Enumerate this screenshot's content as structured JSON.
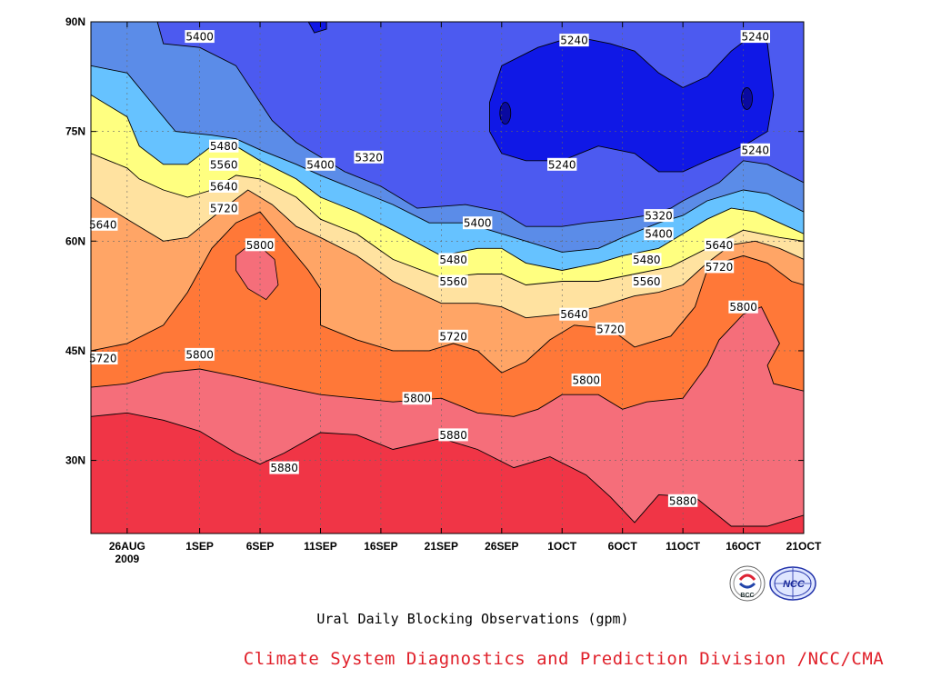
{
  "title": "Ural Daily Blocking Observations (gpm)",
  "credit": "Climate System Diagnostics and Prediction Division /NCC/CMA",
  "logos": {
    "left_label": "BCC",
    "right_label": "NCC"
  },
  "colors": {
    "c_5240": "#1018e6",
    "c_5320": "#4c5af0",
    "c_5400": "#5b8ce8",
    "c_5480": "#66c2ff",
    "c_5560": "#ffff80",
    "c_5640": "#ffe2a0",
    "c_5720": "#ffa566",
    "c_5800": "#ff7838",
    "c_5880": "#f56e7a",
    "c_high": "#f03546",
    "c_low": "#0a0aa0",
    "credit": "#e0202a"
  },
  "chart_data": {
    "type": "contour",
    "x_axis": {
      "ticks": [
        {
          "day": 0,
          "label": "26AUG",
          "sublabel": "2009"
        },
        {
          "day": 6,
          "label": "1SEP"
        },
        {
          "day": 11,
          "label": "6SEP"
        },
        {
          "day": 16,
          "label": "11SEP"
        },
        {
          "day": 21,
          "label": "16SEP"
        },
        {
          "day": 26,
          "label": "21SEP"
        },
        {
          "day": 31,
          "label": "26SEP"
        },
        {
          "day": 36,
          "label": "1OCT"
        },
        {
          "day": 41,
          "label": "6OCT"
        },
        {
          "day": 46,
          "label": "11OCT"
        },
        {
          "day": 51,
          "label": "16OCT"
        },
        {
          "day": 56,
          "label": "21OCT"
        }
      ],
      "range": [
        -3,
        56
      ]
    },
    "y_axis": {
      "ticks": [
        {
          "lat": 30,
          "label": "30N"
        },
        {
          "lat": 45,
          "label": "45N"
        },
        {
          "lat": 60,
          "label": "60N"
        },
        {
          "lat": 75,
          "label": "75N"
        },
        {
          "lat": 90,
          "label": "90N"
        }
      ],
      "range": [
        20,
        90
      ]
    },
    "contour_interval": 80,
    "levels": [
      5240,
      5320,
      5400,
      5480,
      5560,
      5640,
      5720,
      5800,
      5880
    ],
    "contours": [
      {
        "level": 5880,
        "points": [
          [
            -3,
            36
          ],
          [
            0,
            36.5
          ],
          [
            3,
            35.5
          ],
          [
            6,
            34
          ],
          [
            9,
            31
          ],
          [
            11,
            29.5
          ],
          [
            13,
            31
          ],
          [
            16,
            33.8
          ],
          [
            19,
            33.5
          ],
          [
            22,
            31.5
          ],
          [
            26,
            33
          ],
          [
            29,
            31.5
          ],
          [
            32,
            29
          ],
          [
            35,
            30.5
          ],
          [
            38,
            28
          ],
          [
            40,
            25
          ],
          [
            42,
            21.5
          ],
          [
            44,
            25.3
          ],
          [
            47,
            25
          ],
          [
            50,
            21
          ],
          [
            53,
            21
          ],
          [
            56,
            22.5
          ]
        ]
      },
      {
        "level": 5800,
        "points": [
          [
            -3,
            40
          ],
          [
            0,
            40.5
          ],
          [
            3,
            42
          ],
          [
            6,
            42.5
          ],
          [
            9,
            41.5
          ],
          [
            13,
            40
          ],
          [
            16,
            39
          ],
          [
            19,
            38.5
          ],
          [
            22,
            38
          ],
          [
            26,
            38.5
          ],
          [
            29,
            36.5
          ],
          [
            32,
            36
          ],
          [
            34,
            37
          ],
          [
            36,
            39
          ],
          [
            39,
            39
          ],
          [
            41,
            37
          ],
          [
            43,
            38
          ],
          [
            46,
            38.5
          ],
          [
            48,
            43
          ],
          [
            49,
            46.5
          ],
          [
            51,
            50
          ],
          [
            52.5,
            51
          ],
          [
            54,
            46
          ],
          [
            53,
            43
          ],
          [
            53.5,
            40.5
          ],
          [
            56,
            39.5
          ]
        ]
      },
      {
        "level": 5720,
        "points": [
          [
            -3,
            45
          ],
          [
            0,
            46
          ],
          [
            3,
            48.5
          ],
          [
            5,
            53
          ],
          [
            7,
            59
          ],
          [
            9,
            62.5
          ],
          [
            11,
            64
          ],
          [
            13,
            60
          ],
          [
            15,
            56
          ],
          [
            16,
            53.5
          ],
          [
            16,
            48.5
          ],
          [
            19,
            46.5
          ],
          [
            22,
            45
          ],
          [
            25,
            45
          ],
          [
            27,
            46
          ],
          [
            29,
            45
          ],
          [
            31,
            42
          ],
          [
            33,
            43.5
          ],
          [
            35,
            46.5
          ],
          [
            37,
            48.5
          ],
          [
            40,
            48
          ],
          [
            42,
            45.5
          ],
          [
            45,
            47
          ],
          [
            47,
            51
          ],
          [
            48,
            56
          ],
          [
            49,
            57
          ],
          [
            51,
            58
          ],
          [
            53,
            57
          ],
          [
            55,
            54.5
          ],
          [
            56,
            54
          ]
        ]
      },
      {
        "level": 5640,
        "points": [
          [
            -3,
            66
          ],
          [
            0,
            63
          ],
          [
            3,
            60
          ],
          [
            5,
            60.5
          ],
          [
            8,
            64.5
          ],
          [
            10,
            67
          ],
          [
            12,
            65
          ],
          [
            14,
            62
          ],
          [
            16,
            60.5
          ],
          [
            19,
            58
          ],
          [
            22,
            54.5
          ],
          [
            26,
            51.5
          ],
          [
            29,
            51.5
          ],
          [
            31,
            51
          ],
          [
            33,
            49.5
          ],
          [
            36,
            50
          ],
          [
            39,
            51
          ],
          [
            42,
            52.5
          ],
          [
            44,
            53
          ],
          [
            46,
            54
          ],
          [
            48,
            57
          ],
          [
            50,
            59.5
          ],
          [
            52,
            60
          ],
          [
            54,
            59
          ],
          [
            56,
            57.5
          ]
        ]
      },
      {
        "level": 5560,
        "points": [
          [
            -3,
            72
          ],
          [
            0,
            70
          ],
          [
            1,
            68.5
          ],
          [
            3,
            67
          ],
          [
            5,
            66
          ],
          [
            7,
            67
          ],
          [
            9,
            69
          ],
          [
            11,
            68.5
          ],
          [
            14,
            66
          ],
          [
            16,
            63
          ],
          [
            19,
            61
          ],
          [
            22,
            57.5
          ],
          [
            26,
            55
          ],
          [
            29,
            55.5
          ],
          [
            31,
            55.5
          ],
          [
            33,
            54
          ],
          [
            36,
            54.5
          ],
          [
            39,
            54.5
          ],
          [
            42,
            55.5
          ],
          [
            45,
            56.5
          ],
          [
            48,
            59
          ],
          [
            51,
            61.5
          ],
          [
            54,
            60.5
          ],
          [
            56,
            60
          ]
        ]
      },
      {
        "level": 5480,
        "points": [
          [
            -3,
            80
          ],
          [
            0,
            77
          ],
          [
            1,
            73
          ],
          [
            3,
            70.5
          ],
          [
            5,
            70.5
          ],
          [
            7,
            73
          ],
          [
            9,
            73
          ],
          [
            11,
            71
          ],
          [
            14,
            68.5
          ],
          [
            16,
            66
          ],
          [
            19,
            64
          ],
          [
            22,
            61.5
          ],
          [
            26,
            58
          ],
          [
            29,
            59
          ],
          [
            31,
            59
          ],
          [
            33,
            57
          ],
          [
            36,
            56
          ],
          [
            39,
            57
          ],
          [
            41,
            58
          ],
          [
            44,
            59
          ],
          [
            46,
            61
          ],
          [
            48,
            63
          ],
          [
            50,
            64.5
          ],
          [
            52,
            64
          ],
          [
            54,
            62.5
          ],
          [
            56,
            61
          ]
        ]
      },
      {
        "level": 5400,
        "points": [
          [
            -3,
            84
          ],
          [
            0,
            83
          ],
          [
            2,
            79
          ],
          [
            4,
            75
          ],
          [
            7,
            74.5
          ],
          [
            9,
            74
          ],
          [
            11,
            72.5
          ],
          [
            14,
            70.5
          ],
          [
            16,
            69
          ],
          [
            19,
            67
          ],
          [
            22,
            65
          ],
          [
            25,
            62.5
          ],
          [
            28,
            62.5
          ],
          [
            31,
            61
          ],
          [
            33,
            60
          ],
          [
            36,
            58.5
          ],
          [
            39,
            59
          ],
          [
            41,
            60.5
          ],
          [
            44,
            62.5
          ],
          [
            46,
            63.5
          ],
          [
            48,
            65.5
          ],
          [
            51,
            67
          ],
          [
            53,
            66.5
          ],
          [
            56,
            64
          ]
        ]
      },
      {
        "level": 5320,
        "points": [
          [
            2.5,
            90
          ],
          [
            3,
            87
          ],
          [
            6,
            86.5
          ],
          [
            9,
            84
          ],
          [
            11,
            79
          ],
          [
            12,
            76.5
          ],
          [
            14,
            73.5
          ],
          [
            16,
            71.5
          ],
          [
            18,
            69.5
          ],
          [
            21,
            67.5
          ],
          [
            24,
            64.5
          ],
          [
            28,
            65
          ],
          [
            31,
            64
          ],
          [
            33,
            62
          ],
          [
            36,
            62
          ],
          [
            38,
            62.5
          ],
          [
            41,
            63
          ],
          [
            43,
            63.5
          ],
          [
            45,
            64.5
          ],
          [
            46,
            65.5
          ],
          [
            49,
            68
          ],
          [
            51,
            71
          ],
          [
            53,
            70.5
          ],
          [
            56,
            68
          ]
        ]
      },
      {
        "level": 5240,
        "points": [
          [
            30,
            79
          ],
          [
            31,
            84
          ],
          [
            34,
            86.5
          ],
          [
            37,
            88
          ],
          [
            40,
            87
          ],
          [
            42,
            86
          ],
          [
            44,
            83
          ],
          [
            46,
            81
          ],
          [
            48,
            82.5
          ],
          [
            50,
            86
          ],
          [
            52,
            88.5
          ],
          [
            53,
            87
          ],
          [
            53.5,
            80
          ],
          [
            53,
            75
          ],
          [
            51,
            73
          ],
          [
            48,
            71
          ],
          [
            46,
            69.5
          ],
          [
            44,
            69.5
          ],
          [
            42,
            72
          ],
          [
            39,
            73
          ],
          [
            36,
            71
          ],
          [
            33,
            71
          ],
          [
            31,
            72
          ],
          [
            30,
            75
          ],
          [
            30,
            79
          ]
        ]
      },
      {
        "level": 5240,
        "points": [
          [
            15,
            90
          ],
          [
            15.5,
            88.5
          ],
          [
            16.5,
            89
          ],
          [
            16.5,
            90
          ]
        ]
      }
    ],
    "contour_labels": [
      {
        "day": 6,
        "lat": 88,
        "value": "5400"
      },
      {
        "day": 37,
        "lat": 87.5,
        "value": "5240"
      },
      {
        "day": 52,
        "lat": 88,
        "value": "5240"
      },
      {
        "day": 8,
        "lat": 73,
        "value": "5480"
      },
      {
        "day": 20,
        "lat": 71.5,
        "value": "5320"
      },
      {
        "day": 8,
        "lat": 70.5,
        "value": "5560"
      },
      {
        "day": 16,
        "lat": 70.5,
        "value": "5400"
      },
      {
        "day": 36,
        "lat": 70.5,
        "value": "5240"
      },
      {
        "day": 52,
        "lat": 72.5,
        "value": "5240"
      },
      {
        "day": 8,
        "lat": 67.5,
        "value": "5640"
      },
      {
        "day": 8,
        "lat": 64.5,
        "value": "5720"
      },
      {
        "day": 29,
        "lat": 62.5,
        "value": "5400"
      },
      {
        "day": 44,
        "lat": 63.5,
        "value": "5320"
      },
      {
        "day": -2,
        "lat": 62.3,
        "value": "5640"
      },
      {
        "day": 44,
        "lat": 61,
        "value": "5400"
      },
      {
        "day": 11,
        "lat": 59.5,
        "value": "5800"
      },
      {
        "day": 49,
        "lat": 59.5,
        "value": "5640"
      },
      {
        "day": 27,
        "lat": 57.5,
        "value": "5480"
      },
      {
        "day": 43,
        "lat": 57.5,
        "value": "5480"
      },
      {
        "day": 49,
        "lat": 56.5,
        "value": "5720"
      },
      {
        "day": 27,
        "lat": 54.5,
        "value": "5560"
      },
      {
        "day": 43,
        "lat": 54.5,
        "value": "5560"
      },
      {
        "day": 51,
        "lat": 51,
        "value": "5800"
      },
      {
        "day": 37,
        "lat": 50,
        "value": "5640"
      },
      {
        "day": 40,
        "lat": 48,
        "value": "5720"
      },
      {
        "day": 27,
        "lat": 47,
        "value": "5720"
      },
      {
        "day": 6,
        "lat": 44.5,
        "value": "5800"
      },
      {
        "day": -2,
        "lat": 44,
        "value": "5720"
      },
      {
        "day": 38,
        "lat": 41,
        "value": "5800"
      },
      {
        "day": 24,
        "lat": 38.5,
        "value": "5800"
      },
      {
        "day": 27,
        "lat": 33.5,
        "value": "5880"
      },
      {
        "day": 13,
        "lat": 29,
        "value": "5880"
      },
      {
        "day": 46,
        "lat": 24.5,
        "value": "5880"
      }
    ]
  }
}
